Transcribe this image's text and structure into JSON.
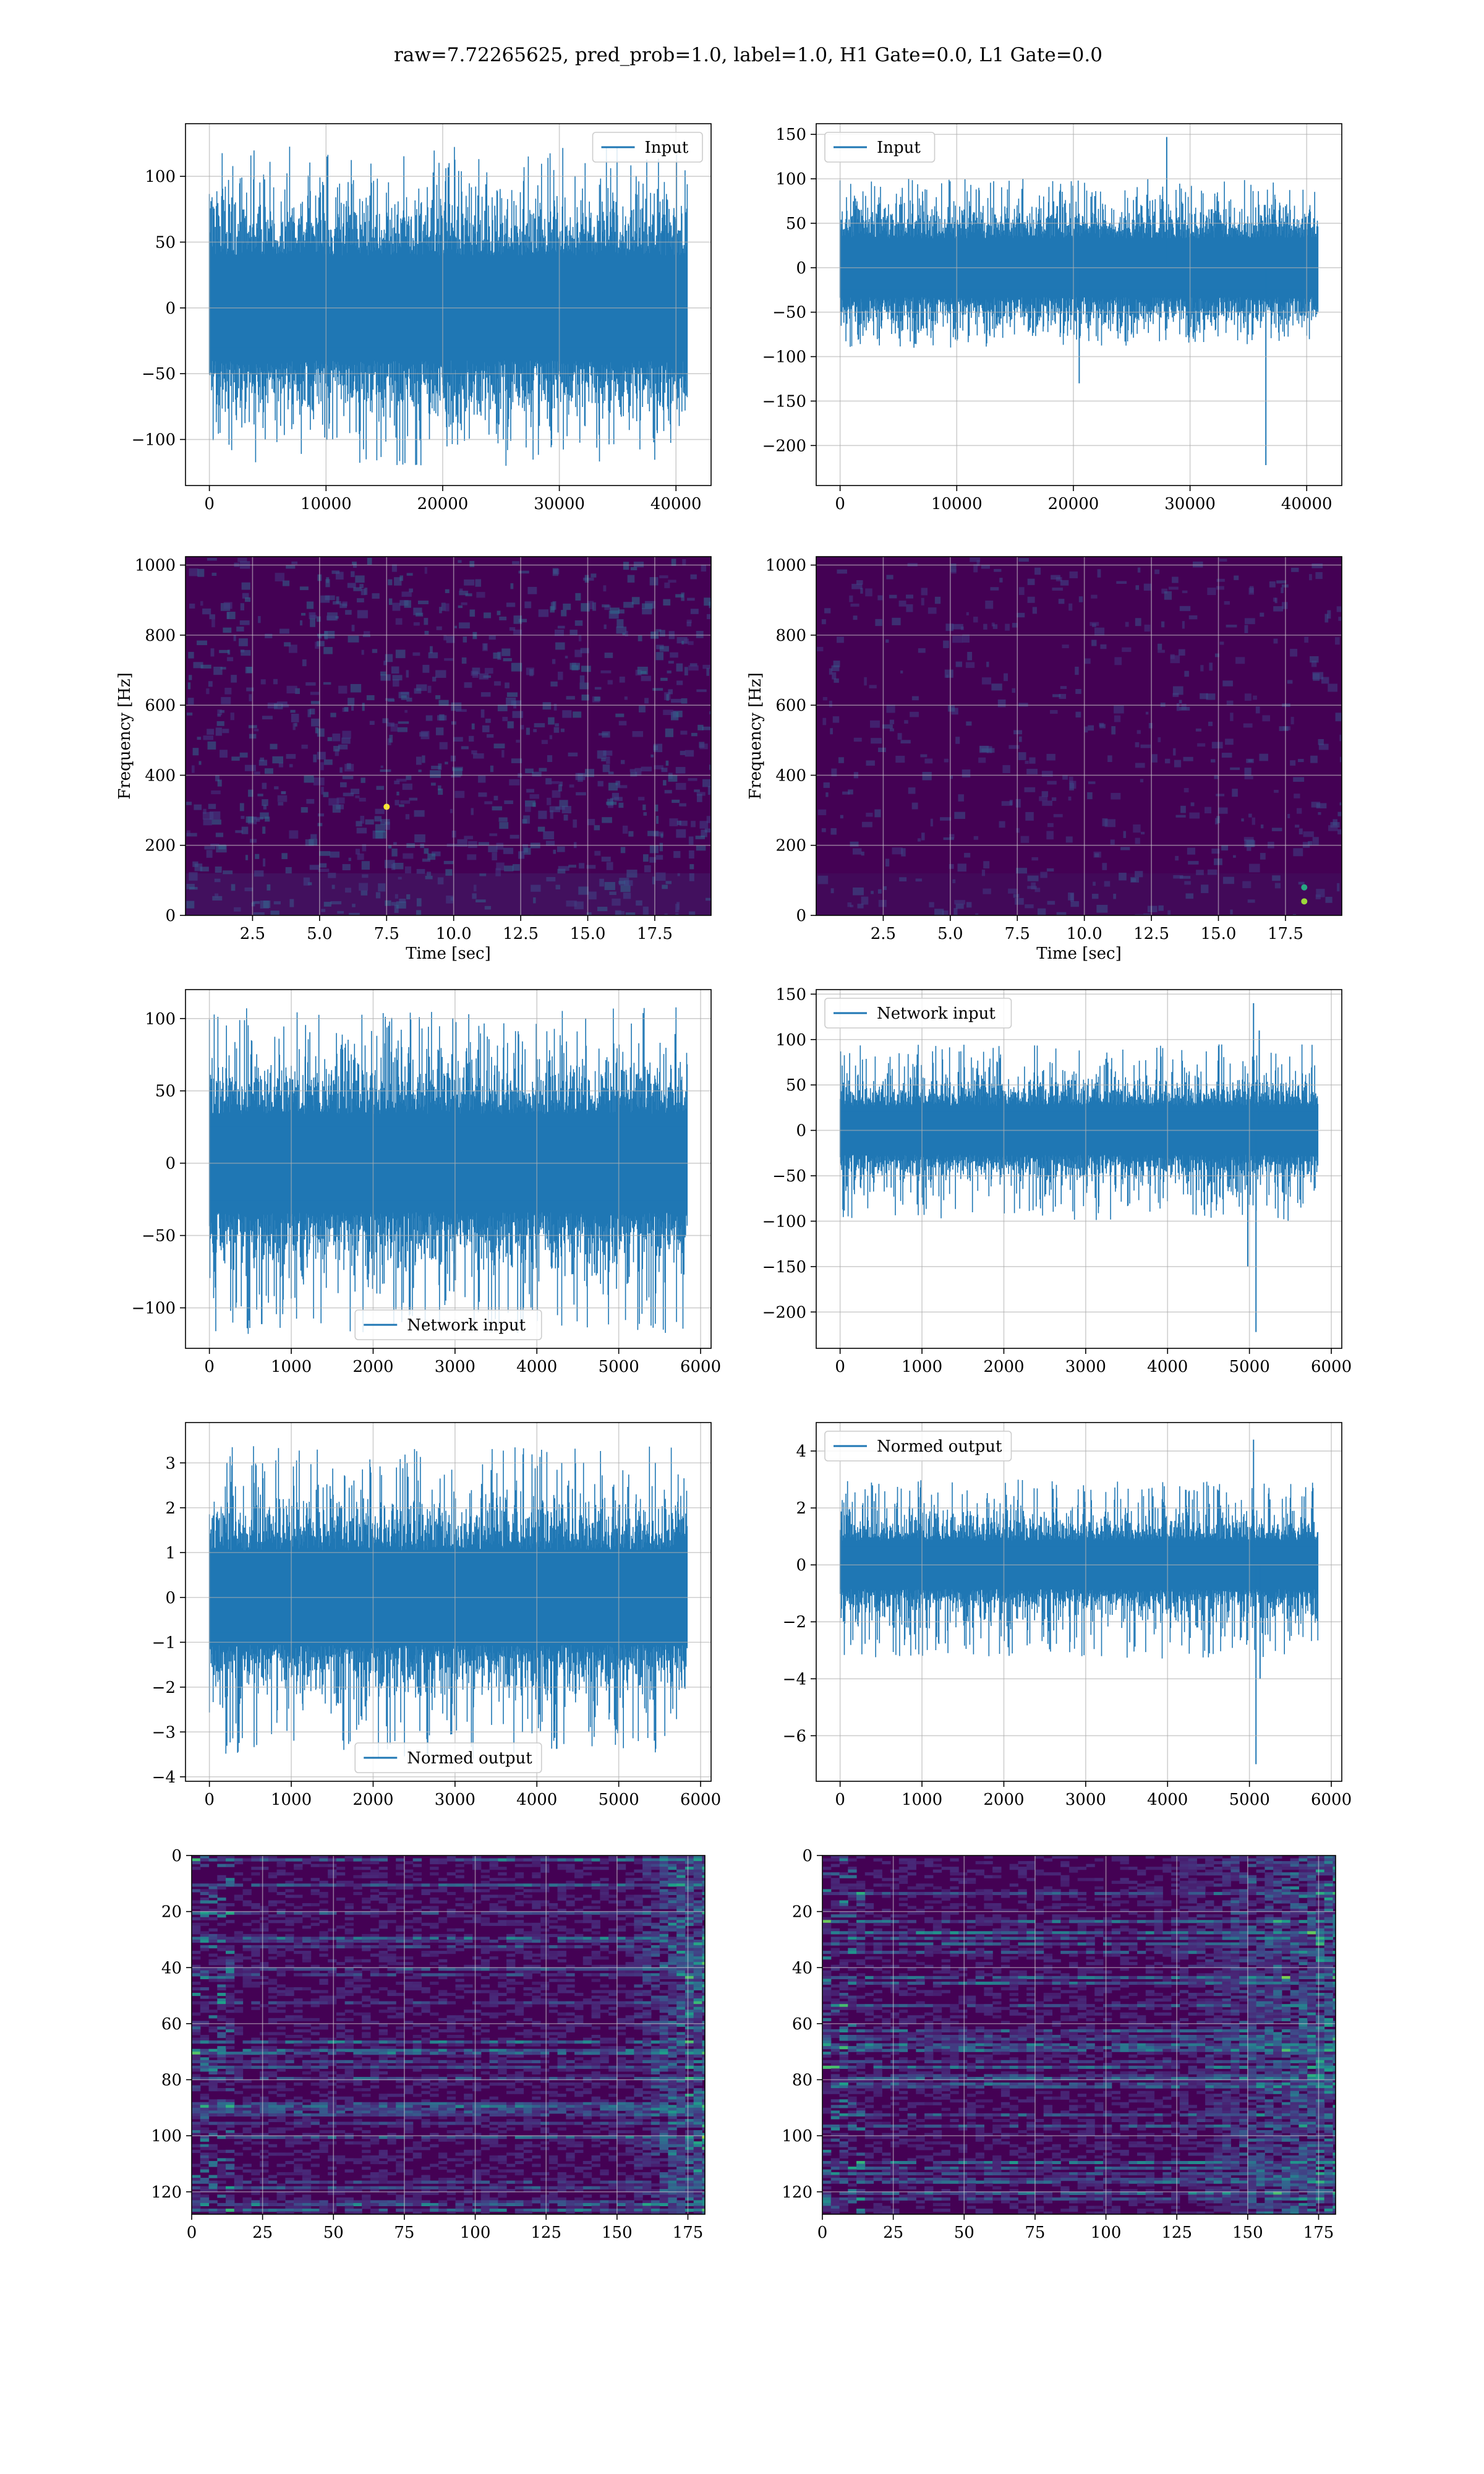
{
  "figure": {
    "suptitle": "raw=7.72265625, pred_prob=1.0, label=1.0, H1 Gate=0.0, L1 Gate=0.0"
  },
  "colors": {
    "series": "#1f77b4",
    "grid": "#b0b0b0",
    "viridis_low": "#440154",
    "viridis_mid": "#3b528b",
    "viridis_teal": "#21918c",
    "viridis_green": "#5ec962",
    "viridis_high": "#fde725"
  },
  "chart_data": [
    {
      "id": "input-h1",
      "type": "line",
      "col": 0,
      "row": 0,
      "x_range": [
        0,
        40960
      ],
      "xlim": [
        -2048,
        43008
      ],
      "ylim": [
        -135,
        140
      ],
      "xticks": [
        0,
        10000,
        20000,
        30000,
        40000
      ],
      "yticks": [
        -100,
        -50,
        0,
        50,
        100
      ],
      "legend": "top-right",
      "series": [
        {
          "name": "Input",
          "amp": 40,
          "peak_min": -120,
          "peak_max": 123,
          "spikes": []
        }
      ]
    },
    {
      "id": "input-l1",
      "type": "line",
      "col": 1,
      "row": 0,
      "x_range": [
        0,
        40960
      ],
      "xlim": [
        -2048,
        43008
      ],
      "ylim": [
        -245,
        162
      ],
      "xticks": [
        0,
        10000,
        20000,
        30000,
        40000
      ],
      "yticks": [
        -200,
        -150,
        -100,
        -50,
        0,
        50,
        100,
        150
      ],
      "legend": "top-left",
      "series": [
        {
          "name": "Input",
          "amp": 33,
          "peak_min": -90,
          "peak_max": 100,
          "spikes": [
            {
              "x": 28000,
              "y": 147
            },
            {
              "x": 36500,
              "y": -222
            },
            {
              "x": 20500,
              "y": -130
            }
          ]
        }
      ]
    },
    {
      "id": "spectrogram-h1",
      "type": "heatmap",
      "col": 0,
      "row": 1,
      "xlim": [
        0.0,
        19.6
      ],
      "ylim": [
        0,
        1024
      ],
      "xticks": [
        2.5,
        5.0,
        7.5,
        10.0,
        12.5,
        15.0,
        17.5
      ],
      "xticklabels": [
        "2.5",
        "5.0",
        "7.5",
        "10.0",
        "12.5",
        "15.0",
        "17.5"
      ],
      "yticks": [
        0,
        200,
        400,
        600,
        800,
        1000
      ],
      "xlabel": "Time [sec]",
      "ylabel": "Frequency [Hz]",
      "brightness": 0.55,
      "hotspots": [
        {
          "x": 7.5,
          "y": 310,
          "v": 1.0
        }
      ]
    },
    {
      "id": "spectrogram-l1",
      "type": "heatmap",
      "col": 1,
      "row": 1,
      "xlim": [
        0.0,
        19.6
      ],
      "ylim": [
        0,
        1024
      ],
      "xticks": [
        2.5,
        5.0,
        7.5,
        10.0,
        12.5,
        15.0,
        17.5
      ],
      "xticklabels": [
        "2.5",
        "5.0",
        "7.5",
        "10.0",
        "12.5",
        "15.0",
        "17.5"
      ],
      "yticks": [
        0,
        200,
        400,
        600,
        800,
        1000
      ],
      "xlabel": "Time [sec]",
      "ylabel": "Frequency [Hz]",
      "brightness": 0.3,
      "hotspots": [
        {
          "x": 18.2,
          "y": 40,
          "v": 0.85
        },
        {
          "x": 18.2,
          "y": 80,
          "v": 0.6
        }
      ]
    },
    {
      "id": "network-input-h1",
      "type": "line",
      "col": 0,
      "row": 2,
      "x_range": [
        0,
        5836
      ],
      "xlim": [
        -292,
        6128
      ],
      "ylim": [
        -128,
        120
      ],
      "xticks": [
        0,
        1000,
        2000,
        3000,
        4000,
        5000,
        6000
      ],
      "yticks": [
        -100,
        -50,
        0,
        50,
        100
      ],
      "legend": "bottom-center",
      "series": [
        {
          "name": "Network input",
          "amp": 34,
          "peak_min": -118,
          "peak_max": 108,
          "spikes": []
        }
      ]
    },
    {
      "id": "network-input-l1",
      "type": "line",
      "col": 1,
      "row": 2,
      "x_range": [
        0,
        5836
      ],
      "xlim": [
        -292,
        6128
      ],
      "ylim": [
        -240,
        155
      ],
      "xticks": [
        0,
        1000,
        2000,
        3000,
        4000,
        5000,
        6000
      ],
      "yticks": [
        -200,
        -150,
        -100,
        -50,
        0,
        50,
        100,
        150
      ],
      "legend": "top-left",
      "series": [
        {
          "name": "Network input",
          "amp": 27,
          "peak_min": -100,
          "peak_max": 95,
          "spikes": [
            {
              "x": 5080,
              "y": -222
            },
            {
              "x": 5050,
              "y": 140
            },
            {
              "x": 4980,
              "y": -150
            },
            {
              "x": 5120,
              "y": 110
            }
          ]
        }
      ]
    },
    {
      "id": "normed-output-h1",
      "type": "line",
      "col": 0,
      "row": 3,
      "x_range": [
        0,
        5836
      ],
      "xlim": [
        -292,
        6128
      ],
      "ylim": [
        -4.1,
        3.9
      ],
      "xticks": [
        0,
        1000,
        2000,
        3000,
        4000,
        5000,
        6000
      ],
      "yticks": [
        -4,
        -3,
        -2,
        -1,
        0,
        1,
        2,
        3
      ],
      "legend": "bottom-center",
      "series": [
        {
          "name": "Normed output",
          "amp": 1.05,
          "peak_min": -3.6,
          "peak_max": 3.4,
          "spikes": []
        }
      ]
    },
    {
      "id": "normed-output-l1",
      "type": "line",
      "col": 1,
      "row": 3,
      "x_range": [
        0,
        5836
      ],
      "xlim": [
        -292,
        6128
      ],
      "ylim": [
        -7.6,
        5.0
      ],
      "xticks": [
        0,
        1000,
        2000,
        3000,
        4000,
        5000,
        6000
      ],
      "yticks": [
        -6,
        -4,
        -2,
        0,
        2,
        4
      ],
      "legend": "top-left",
      "series": [
        {
          "name": "Normed output",
          "amp": 0.85,
          "peak_min": -3.3,
          "peak_max": 3.0,
          "spikes": [
            {
              "x": 5080,
              "y": -7.0
            },
            {
              "x": 5050,
              "y": 4.4
            },
            {
              "x": 5130,
              "y": -4.0
            }
          ]
        }
      ]
    },
    {
      "id": "feature-map-h1",
      "type": "heatmap",
      "col": 0,
      "row": 4,
      "xlim": [
        0,
        181
      ],
      "ylim": [
        128,
        0
      ],
      "inverted": true,
      "xticks": [
        0,
        25,
        50,
        75,
        100,
        125,
        150,
        175
      ],
      "xticklabels": [
        "0",
        "25",
        "50",
        "75",
        "100",
        "125",
        "150",
        "175"
      ],
      "yticks": [
        0,
        20,
        40,
        60,
        80,
        100,
        120
      ],
      "brightness": 0.4,
      "rows": 128,
      "cols": 181,
      "active_from": 150,
      "hotspots": []
    },
    {
      "id": "feature-map-l1",
      "type": "heatmap",
      "col": 1,
      "row": 4,
      "xlim": [
        0,
        181
      ],
      "ylim": [
        128,
        0
      ],
      "inverted": true,
      "xticks": [
        0,
        25,
        50,
        75,
        100,
        125,
        150,
        175
      ],
      "xticklabels": [
        "0",
        "25",
        "50",
        "75",
        "100",
        "125",
        "150",
        "175"
      ],
      "yticks": [
        0,
        20,
        40,
        60,
        80,
        100,
        120
      ],
      "brightness": 0.3,
      "rows": 128,
      "cols": 181,
      "active_from": 120,
      "hotspots": []
    }
  ]
}
